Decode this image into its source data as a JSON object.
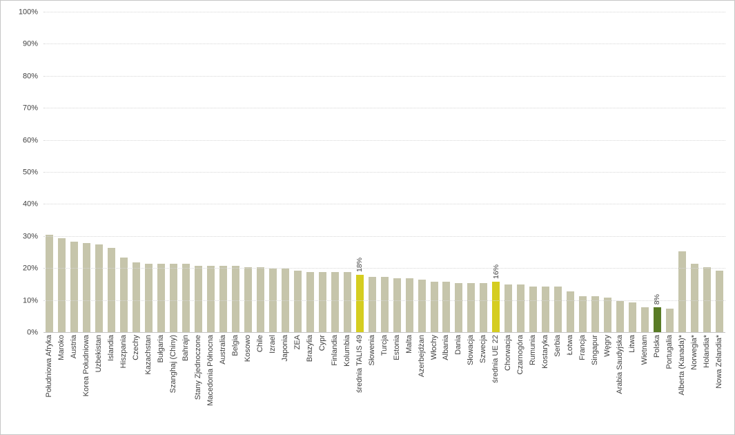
{
  "chart_data": {
    "type": "bar",
    "title": "",
    "xlabel": "",
    "ylabel": "",
    "unit": "percent",
    "ylim": [
      0,
      100
    ],
    "y_ticks": [
      0,
      10,
      20,
      30,
      40,
      50,
      60,
      70,
      80,
      90,
      100
    ],
    "y_tick_labels": [
      "0%",
      "10%",
      "20%",
      "30%",
      "40%",
      "50%",
      "60%",
      "70%",
      "80%",
      "90%",
      "100%"
    ],
    "grid": "horizontal-dotted",
    "legend_position": "none",
    "bar_color": "#c6c5ab",
    "gridline_color": "#d6d6d6",
    "text_color": "#404040",
    "categories": [
      "Południowa Afryka",
      "Maroko",
      "Austria",
      "Korea Południowa",
      "Uzbekistan",
      "Islandia",
      "Hiszpania",
      "Czechy",
      "Kazachstan",
      "Bułgaria",
      "Szanghaj (Chiny)",
      "Bahrajn",
      "Stany Zjednoczone",
      "Macedonia Północna",
      "Australia",
      "Belgia",
      "Kosowo",
      "Chile",
      "Izrael",
      "Japonia",
      "ZEA",
      "Brazylia",
      "Cypr",
      "Finlandia",
      "Kolumbia",
      "średnia TALIS 49",
      "Słowenia",
      "Turcja",
      "Estonia",
      "Malta",
      "Azerbejdżan",
      "Włochy",
      "Albania",
      "Dania",
      "Słowacja",
      "Szwecja",
      "średnia UE 22",
      "Chorwacja",
      "Czarnogóra",
      "Rumunia",
      "Kostaryka",
      "Serbia",
      "Łotwa",
      "Francja",
      "Singapur",
      "Węgry",
      "Arabia Saudyjska",
      "Litwa",
      "Wietnam",
      "Polska",
      "Portugalia",
      "Alberta (Kanada)*",
      "Norwegia*",
      "Holandia*",
      "Nowa Zelandia*"
    ],
    "values": [
      30.5,
      29.5,
      28.5,
      28,
      27.5,
      26.5,
      23.5,
      22,
      21.5,
      21.5,
      21.5,
      21.5,
      21,
      21,
      21,
      21,
      20.5,
      20.5,
      20,
      20,
      19.5,
      19,
      19,
      19,
      19,
      18,
      17.5,
      17.5,
      17,
      17,
      16.5,
      16,
      16,
      15.5,
      15.5,
      15.5,
      16,
      15,
      15,
      14.5,
      14.5,
      14.5,
      13,
      11.5,
      11.5,
      11,
      10,
      9.5,
      8,
      8,
      7.5,
      25.5,
      21.5,
      20.5,
      19.5
    ],
    "highlights": [
      {
        "category": "średnia TALIS 49",
        "index": 25,
        "color": "#d5cd20",
        "data_label": "18%"
      },
      {
        "category": "średnia UE 22",
        "index": 36,
        "color": "#d5cd20",
        "data_label": "16%"
      },
      {
        "category": "Polska",
        "index": 49,
        "color": "#597b25",
        "data_label": "8%"
      }
    ]
  }
}
